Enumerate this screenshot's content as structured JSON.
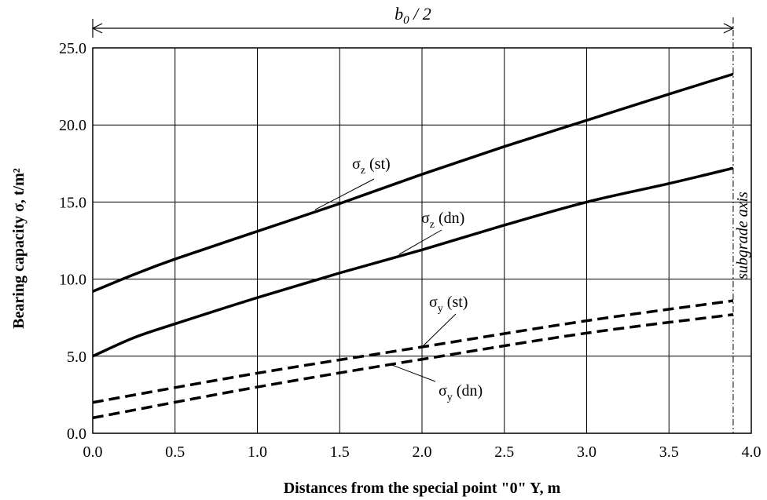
{
  "chart_data": {
    "type": "line",
    "title": "",
    "xlabel": "Distances from the special point \"0\" Y, m",
    "ylabel": "Bearing capacity σ, t/m²",
    "xlim": [
      0.0,
      4.0
    ],
    "ylim": [
      0.0,
      25.0
    ],
    "xticks": [
      "0.0",
      "0.5",
      "1.0",
      "1.5",
      "2.0",
      "2.5",
      "3.0",
      "3.5",
      "4.0"
    ],
    "yticks": [
      "0.0",
      "5.0",
      "10.0",
      "15.0",
      "20.0",
      "25.0"
    ],
    "grid": true,
    "series": [
      {
        "name": "σz (st)",
        "style": "solid",
        "x": [
          0.0,
          0.25,
          0.5,
          1.0,
          1.5,
          2.0,
          2.5,
          3.0,
          3.5,
          3.89
        ],
        "y": [
          9.2,
          10.3,
          11.3,
          13.1,
          14.9,
          16.8,
          18.6,
          20.3,
          22.0,
          23.3
        ]
      },
      {
        "name": "σz (dn)",
        "style": "solid",
        "x": [
          0.0,
          0.25,
          0.5,
          1.0,
          1.5,
          2.0,
          2.5,
          3.0,
          3.5,
          3.89
        ],
        "y": [
          5.0,
          6.2,
          7.1,
          8.8,
          10.4,
          11.9,
          13.5,
          15.0,
          16.2,
          17.2
        ]
      },
      {
        "name": "σy (st)",
        "style": "dashed",
        "x": [
          0.0,
          1.0,
          2.0,
          3.0,
          3.89
        ],
        "y": [
          2.0,
          3.9,
          5.6,
          7.3,
          8.6
        ]
      },
      {
        "name": "σy (dn)",
        "style": "dashed",
        "x": [
          0.0,
          1.0,
          2.0,
          3.0,
          3.89
        ],
        "y": [
          1.0,
          3.0,
          4.8,
          6.5,
          7.7
        ]
      }
    ],
    "annotations": {
      "top_span": {
        "text": "b0 / 2",
        "x_start": 0.0,
        "x_end": 3.89
      },
      "vertical_axis_line": {
        "text": "subgrade axis",
        "x": 3.89
      }
    }
  }
}
